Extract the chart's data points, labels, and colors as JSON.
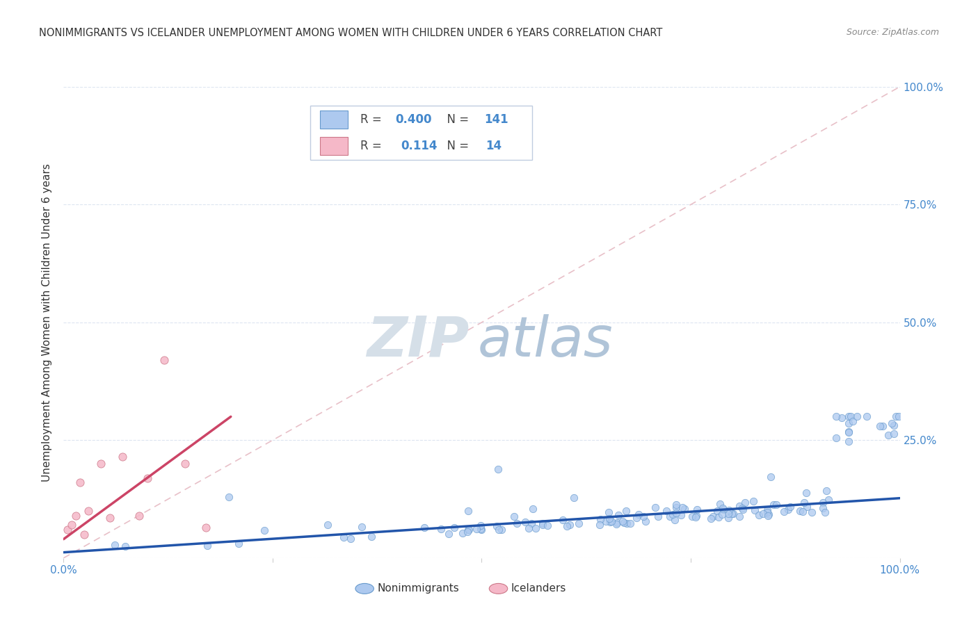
{
  "title": "NONIMMIGRANTS VS ICELANDER UNEMPLOYMENT AMONG WOMEN WITH CHILDREN UNDER 6 YEARS CORRELATION CHART",
  "source": "Source: ZipAtlas.com",
  "ylabel": "Unemployment Among Women with Children Under 6 years",
  "xlim": [
    0,
    1.0
  ],
  "ylim": [
    0,
    1.0
  ],
  "blue_R": "0.400",
  "blue_N": "141",
  "pink_R": "0.114",
  "pink_N": "14",
  "blue_color": "#adc9ef",
  "blue_edge_color": "#6699cc",
  "blue_line_color": "#2255aa",
  "pink_color": "#f5b8c8",
  "pink_edge_color": "#cc7788",
  "pink_line_color": "#cc4466",
  "diagonal_color": "#e8c0c8",
  "background_color": "#ffffff",
  "title_color": "#333333",
  "source_color": "#888888",
  "axis_label_color": "#333333",
  "tick_color": "#4488cc",
  "grid_color": "#dde5f0",
  "legend_edge_color": "#c0cce0",
  "watermark_zip_color": "#d5dfe8",
  "watermark_atlas_color": "#b0c4d8"
}
